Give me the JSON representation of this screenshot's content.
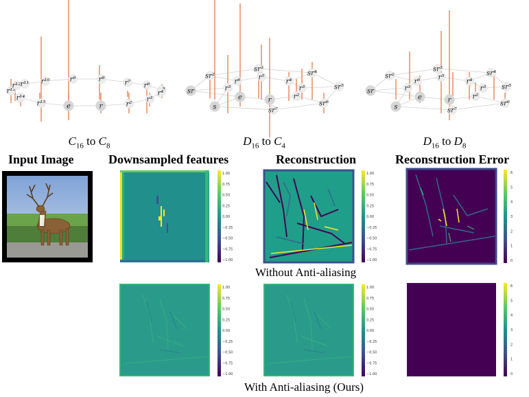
{
  "graphs": [
    {
      "id": "c16-c8",
      "caption_main": "C",
      "caption_sub1": "16",
      "caption_to": " to ",
      "caption_main2": "C",
      "caption_sub2": "8",
      "nodes": [
        "r¹³",
        "r¹²",
        "r¹¹",
        "r¹⁰",
        "r⁹",
        "r⁸",
        "r⁷",
        "r⁶",
        "r⁵",
        "r⁴",
        "r³",
        "r²",
        "r",
        "e",
        "r¹⁵",
        "r¹⁴"
      ]
    },
    {
      "id": "d16-c4",
      "caption_main": "D",
      "caption_sub1": "16",
      "caption_to": " to ",
      "caption_main2": "C",
      "caption_sub2": "4",
      "nodes": [
        "sr",
        "sr²",
        "sr³",
        "sr⁴",
        "sr⁵",
        "sr⁶",
        "sr⁷",
        "s",
        "r³",
        "r⁶",
        "r⁵",
        "r⁴",
        "r³",
        "r²",
        "r",
        "e"
      ]
    },
    {
      "id": "d16-d8",
      "caption_main": "D",
      "caption_sub1": "16",
      "caption_to": " to ",
      "caption_main2": "D",
      "caption_sub2": "8",
      "nodes": [
        "sr",
        "sr²",
        "sr³",
        "sr⁴",
        "sr⁵",
        "sr⁶",
        "sr⁷",
        "s",
        "r³",
        "r⁶",
        "r⁵",
        "r⁴",
        "r³",
        "r²",
        "r",
        "e"
      ]
    }
  ],
  "headings": {
    "input": "Input Image",
    "downsampled": "Downsampled features",
    "reconstruction": "Reconstruction",
    "error": "Reconstruction Error"
  },
  "row_captions": {
    "without": "Without Anti-aliasing",
    "with": "With Anti-aliasing (Ours)"
  },
  "colorbar_ticks_feature": [
    "1.00",
    "0.75",
    "0.50",
    "0.25",
    "0.00",
    "−0.25",
    "−0.50",
    "−0.75",
    "−1.00"
  ],
  "colorbar_ticks_error_top": [
    "6",
    "5",
    "4",
    "3",
    "2",
    "1",
    "0"
  ],
  "colorbar_ticks_error_bottom": [
    "6",
    "5",
    "4",
    "3",
    "2",
    "1",
    "0"
  ],
  "colors": {
    "stem": "#e8926a",
    "node_fill": "#ececec",
    "node_fill_dark": "#d6d6d6",
    "edge": "#cfcfcf",
    "viridis_purple": "#440154",
    "viridis_teal": "#21918c",
    "viridis_green": "#5ec962",
    "viridis_yellow": "#fde725"
  }
}
